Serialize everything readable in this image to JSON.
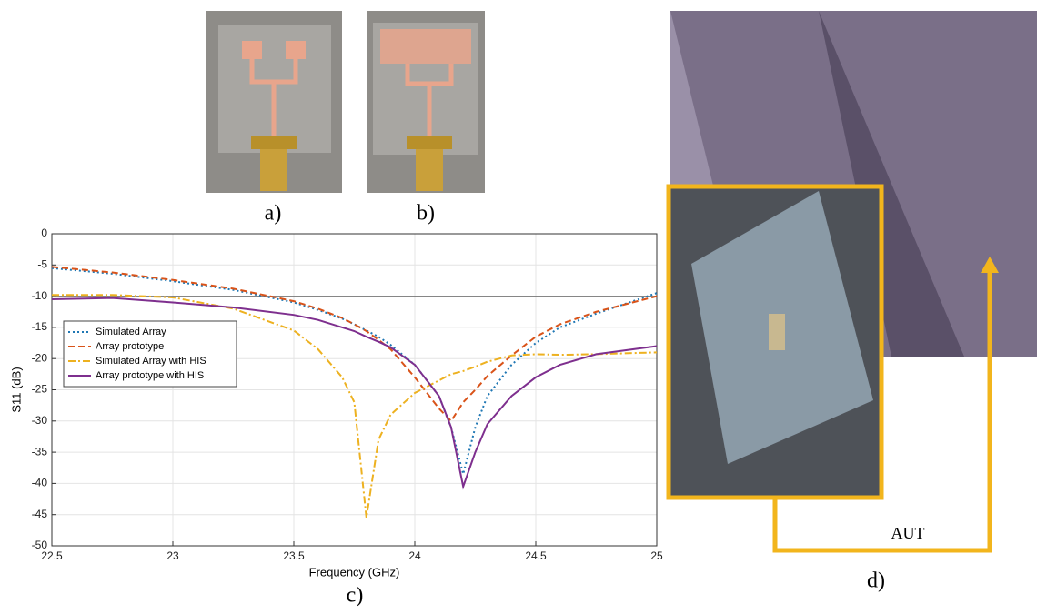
{
  "chart_data": {
    "type": "line",
    "xlabel": "Frequency (GHz)",
    "ylabel": "S11 (dB)",
    "x": [
      22.5,
      22.75,
      23,
      23.25,
      23.5,
      23.6,
      23.7,
      23.75,
      23.8,
      23.85,
      23.9,
      24,
      24.1,
      24.15,
      24.2,
      24.25,
      24.3,
      24.4,
      24.5,
      24.6,
      24.75,
      25
    ],
    "series": [
      {
        "name": "Simulated Array",
        "color": "#1f77b4",
        "dash": "2 3",
        "values": [
          -5.5,
          -6.4,
          -7.6,
          -9,
          -11,
          -12.2,
          -13.6,
          -14.5,
          -15.5,
          -16.5,
          -17.8,
          -21,
          -26,
          -31,
          -38.5,
          -31,
          -26,
          -21,
          -17.5,
          -15,
          -12.8,
          -9.5
        ]
      },
      {
        "name": "Array prototype",
        "color": "#d95319",
        "dash": "7 4",
        "values": [
          -5.3,
          -6.2,
          -7.4,
          -8.8,
          -10.8,
          -12,
          -13.5,
          -14.5,
          -15.6,
          -17,
          -18.5,
          -23,
          -28,
          -30,
          -27,
          -25,
          -22.8,
          -19.5,
          -16.5,
          -14.5,
          -12.5,
          -10
        ]
      },
      {
        "name": "Simulated Array with HIS",
        "color": "#edb120",
        "dash": "8 3 2 3",
        "values": [
          -9.8,
          -9.8,
          -10.2,
          -12,
          -15.5,
          -18.5,
          -23,
          -27,
          -45.5,
          -33,
          -29,
          -25.5,
          -23.5,
          -22.5,
          -22,
          -21.3,
          -20.5,
          -19.5,
          -19.3,
          -19.4,
          -19.3,
          -19
        ]
      },
      {
        "name": "Array prototype with HIS",
        "color": "#7e2f8e",
        "dash": "none",
        "values": [
          -10.5,
          -10.3,
          -11,
          -11.8,
          -13,
          -13.8,
          -15,
          -15.6,
          -16.5,
          -17.3,
          -18.2,
          -21,
          -26,
          -31,
          -40.5,
          -35,
          -30.5,
          -26,
          -23,
          -21,
          -19.3,
          -18
        ]
      }
    ],
    "xlim": [
      22.5,
      25
    ],
    "ylim": [
      -50,
      0
    ],
    "xticks": [
      22.5,
      23,
      23.5,
      24,
      24.5,
      25
    ],
    "yticks": [
      0,
      -5,
      -10,
      -15,
      -20,
      -25,
      -30,
      -35,
      -40,
      -45,
      -50
    ],
    "ref_line": -10,
    "grid": true,
    "legend": "center left"
  },
  "figure": {
    "panel_labels": [
      "a)",
      "b)",
      "c)",
      "d)"
    ],
    "aut_label": "AUT"
  }
}
